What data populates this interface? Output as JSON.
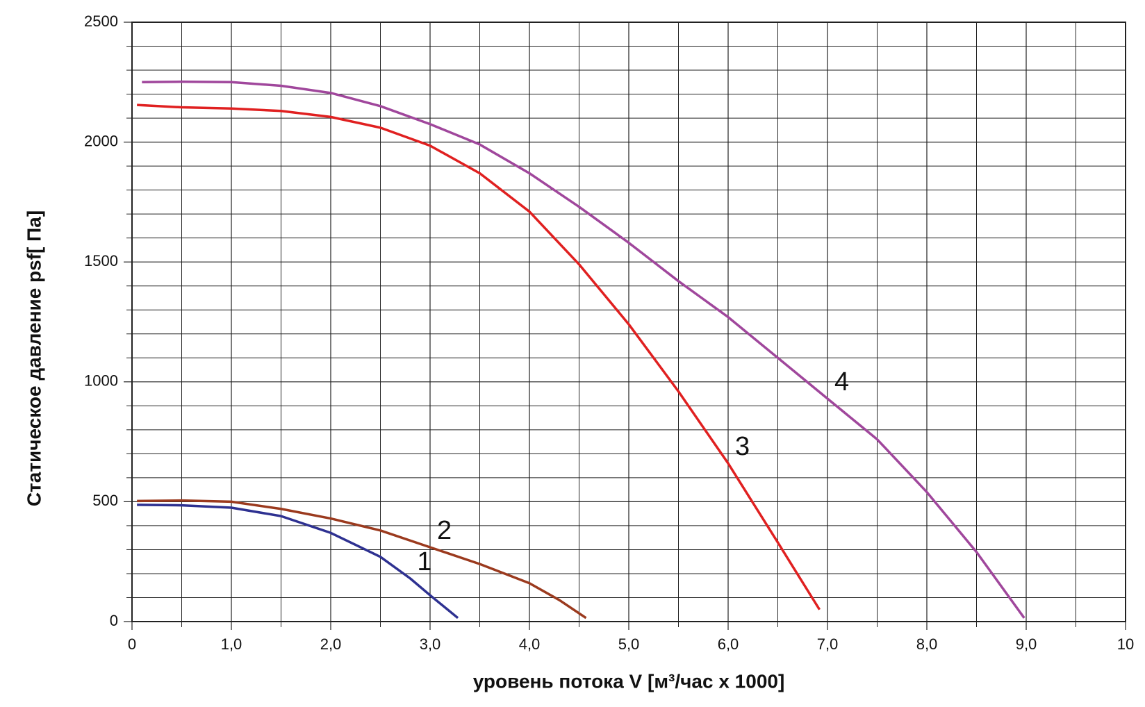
{
  "chart_data": {
    "type": "line",
    "y_label": "Статическое давление  psf[ Па]",
    "x_label": "уровень потока  V [м³/час x 1000]",
    "xlim": [
      0,
      10
    ],
    "ylim": [
      0,
      2500
    ],
    "xticks": [
      0,
      {
        "value": 1,
        "label": "1,0"
      },
      {
        "value": 2,
        "label": "2,0"
      },
      {
        "value": 3,
        "label": "3,0"
      },
      {
        "value": 4,
        "label": "4,0"
      },
      {
        "value": 5,
        "label": "5,0"
      },
      {
        "value": 6,
        "label": "6,0"
      },
      {
        "value": 7,
        "label": "7,0"
      },
      {
        "value": 8,
        "label": "8,0"
      },
      {
        "value": 9,
        "label": "9,0"
      },
      10
    ],
    "yticks": [
      0,
      500,
      1000,
      1500,
      2000,
      2500
    ],
    "xminorticks": [
      0.5,
      1.5,
      2.5,
      3.5,
      4.5,
      5.5,
      6.5,
      7.5,
      8.5,
      9.5
    ],
    "yminorticks": [
      100,
      200,
      300,
      400,
      600,
      700,
      800,
      900,
      1100,
      1200,
      1300,
      1400,
      1600,
      1700,
      1800,
      1900,
      2100,
      2200,
      2300,
      2400
    ],
    "grid": true,
    "series": [
      {
        "name": "1",
        "color": "#2e3191",
        "x": [
          0.05,
          0.5,
          1.0,
          1.5,
          2.0,
          2.5,
          2.8,
          3.0,
          3.28
        ],
        "values": [
          487,
          485,
          475,
          440,
          370,
          270,
          180,
          110,
          15
        ]
      },
      {
        "name": "2",
        "color": "#9b3a1e",
        "x": [
          0.05,
          0.5,
          1.0,
          1.5,
          2.0,
          2.5,
          3.0,
          3.5,
          4.0,
          4.3,
          4.57
        ],
        "values": [
          503,
          505,
          500,
          470,
          430,
          380,
          310,
          240,
          160,
          90,
          15
        ]
      },
      {
        "name": "3",
        "color": "#e02020",
        "x": [
          0.05,
          0.5,
          1.0,
          1.5,
          2.0,
          2.5,
          3.0,
          3.5,
          4.0,
          4.5,
          5.0,
          5.5,
          6.0,
          6.5,
          6.92
        ],
        "values": [
          2155,
          2145,
          2140,
          2130,
          2105,
          2060,
          1985,
          1870,
          1710,
          1490,
          1240,
          960,
          660,
          330,
          50
        ]
      },
      {
        "name": "4",
        "color": "#a0479c",
        "x": [
          0.1,
          0.5,
          1.0,
          1.5,
          2.0,
          2.5,
          3.0,
          3.5,
          4.0,
          4.5,
          5.0,
          5.5,
          6.0,
          6.5,
          7.0,
          7.5,
          8.0,
          8.5,
          8.98
        ],
        "values": [
          2250,
          2252,
          2250,
          2235,
          2205,
          2150,
          2075,
          1990,
          1870,
          1730,
          1580,
          1420,
          1270,
          1100,
          930,
          760,
          540,
          290,
          15
        ]
      }
    ]
  }
}
